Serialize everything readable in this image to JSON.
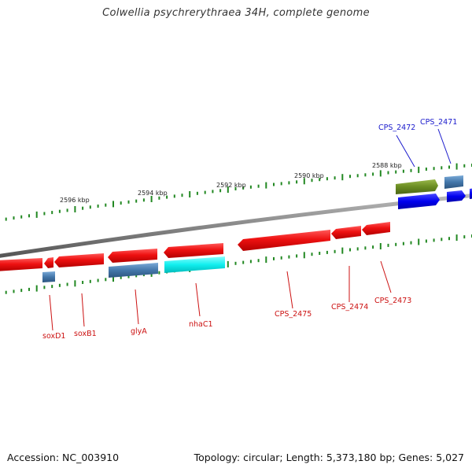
{
  "title": "Colwellia psychrerythraea 34H, complete genome",
  "footer": {
    "accession": "Accession: NC_003910",
    "topology": "Topology: circular; Length: 5,373,180 bp; Genes: 5,027"
  },
  "scale_labels": [
    "2596 kbp",
    "2594 kbp",
    "2592 kbp",
    "2590 kbp",
    "2588 kbp"
  ],
  "gene_labels": {
    "soxD1": "soxD1",
    "soxB1": "soxB1",
    "glyA": "glyA",
    "nhaC1": "nhaC1",
    "CPS_2475": "CPS_2475",
    "CPS_2474": "CPS_2474",
    "CPS_2473": "CPS_2473",
    "CPS_2472": "CPS_2472",
    "CPS_2471": "CPS_2471"
  },
  "colors": {
    "cds": "#ee1111",
    "rna_like": "#4477aa",
    "cyan_feature": "#11eeee",
    "olive_feature": "#6a8c22",
    "blue_feature": "#0000ee",
    "tick": "#228822",
    "backbone": "#888888"
  }
}
